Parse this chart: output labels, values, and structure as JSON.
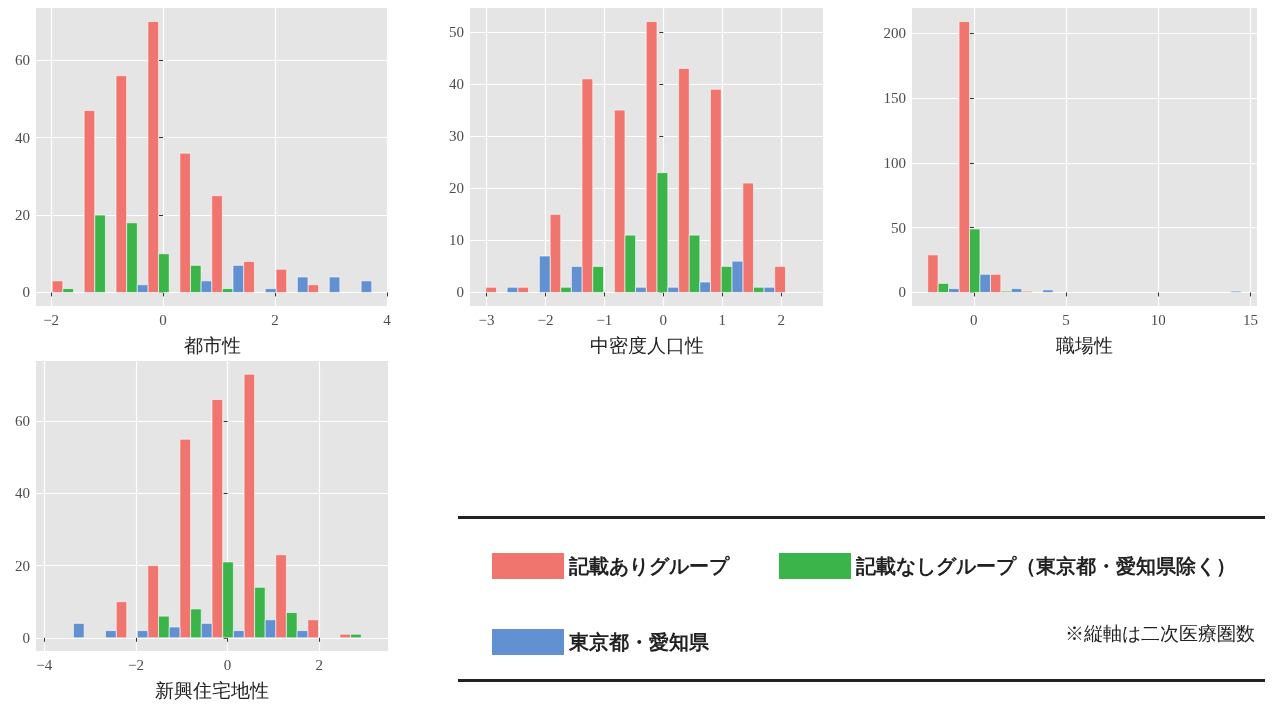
{
  "chart_data": [
    {
      "type": "histogram",
      "xlabel": "都市性",
      "bins": [
        -1.98,
        -1.41,
        -0.84,
        -0.27,
        0.3,
        0.87,
        1.44,
        2.02,
        2.59,
        3.16,
        3.73
      ],
      "series": [
        {
          "color": "#f0756f",
          "values": [
            3,
            47,
            56,
            70,
            36,
            25,
            8,
            6,
            2,
            0
          ]
        },
        {
          "color": "#3bb54a",
          "values": [
            1,
            20,
            18,
            10,
            7,
            1,
            0,
            0,
            0,
            0
          ]
        },
        {
          "color": "#6191d0",
          "values": [
            0,
            0,
            2,
            0,
            3,
            7,
            1,
            4,
            4,
            3
          ]
        }
      ],
      "xlim": [
        -2.27,
        4.02
      ],
      "xticks": [
        {
          "value": -2,
          "label": "−2"
        },
        0,
        2,
        4
      ],
      "ylim": [
        -3.5,
        73.5
      ],
      "yticks": [
        0,
        20,
        40,
        60
      ],
      "grid": true
    },
    {
      "type": "histogram",
      "xlabel": "中密度人口性",
      "bins": [
        -3.01,
        -2.47,
        -1.92,
        -1.38,
        -0.83,
        -0.29,
        0.26,
        0.8,
        1.35,
        1.89,
        2.44
      ],
      "series": [
        {
          "color": "#f0756f",
          "values": [
            1,
            1,
            15,
            41,
            35,
            52,
            43,
            39,
            21,
            5
          ]
        },
        {
          "color": "#3bb54a",
          "values": [
            0,
            0,
            1,
            5,
            11,
            23,
            11,
            5,
            1,
            0
          ]
        },
        {
          "color": "#6191d0",
          "values": [
            1,
            7,
            5,
            0,
            1,
            1,
            2,
            6,
            1,
            0
          ]
        }
      ],
      "xlim": [
        -3.28,
        2.71
      ],
      "xticks": [
        {
          "value": -3,
          "label": "−3"
        },
        {
          "value": -2,
          "label": "−2"
        },
        {
          "value": -1,
          "label": "−1"
        },
        0,
        1,
        2
      ],
      "ylim": [
        -2.6,
        54.6
      ],
      "yticks": [
        0,
        10,
        20,
        30,
        40,
        50
      ],
      "grid": true
    },
    {
      "type": "histogram",
      "xlabel": "職場性",
      "bins": [
        -2.5,
        -0.8,
        0.9,
        2.6,
        4.3,
        6.0,
        7.7,
        9.4,
        11.1,
        12.8,
        14.5
      ],
      "series": [
        {
          "color": "#f0756f",
          "values": [
            29,
            209,
            14,
            1,
            0,
            0,
            0,
            0,
            0,
            0
          ]
        },
        {
          "color": "#3bb54a",
          "values": [
            7,
            49,
            1,
            0,
            0,
            0,
            0,
            0,
            0,
            0
          ]
        },
        {
          "color": "#6191d0",
          "values": [
            3,
            14,
            3,
            2,
            0,
            0,
            0,
            0,
            0,
            1
          ]
        }
      ],
      "xlim": [
        -3.35,
        15.35
      ],
      "xticks": [
        0,
        5,
        10,
        15
      ],
      "ylim": [
        -10.45,
        219.45
      ],
      "yticks": [
        0,
        50,
        100,
        150,
        200
      ],
      "grid": true
    },
    {
      "type": "histogram",
      "xlabel": "新興住宅地性",
      "bins": [
        -3.83,
        -3.13,
        -2.43,
        -1.74,
        -1.04,
        -0.34,
        0.36,
        1.05,
        1.75,
        2.45,
        3.15
      ],
      "series": [
        {
          "name": "記載ありグループ",
          "color": "#f0756f",
          "values": [
            0,
            0,
            10,
            20,
            55,
            66,
            73,
            23,
            5,
            1
          ]
        },
        {
          "name": "記載なしグループ（東京都・愛知県除く）",
          "color": "#3bb54a",
          "values": [
            0,
            0,
            0,
            6,
            8,
            21,
            14,
            7,
            0,
            1
          ]
        },
        {
          "name": "東京都・愛知県",
          "color": "#6191d0",
          "values": [
            4,
            2,
            2,
            3,
            4,
            2,
            5,
            2,
            0,
            0
          ]
        }
      ],
      "xlim": [
        -4.18,
        3.5
      ],
      "xticks": [
        {
          "value": -4,
          "label": "−4"
        },
        {
          "value": -2,
          "label": "−2"
        },
        0,
        {
          "value": 2,
          "label": "2"
        }
      ],
      "ylim": [
        -3.65,
        76.65
      ],
      "yticks": [
        0,
        20,
        40,
        60
      ],
      "grid": true,
      "legend": "right",
      "annotations": [
        "※縦軸は二次医療圏数"
      ]
    }
  ]
}
